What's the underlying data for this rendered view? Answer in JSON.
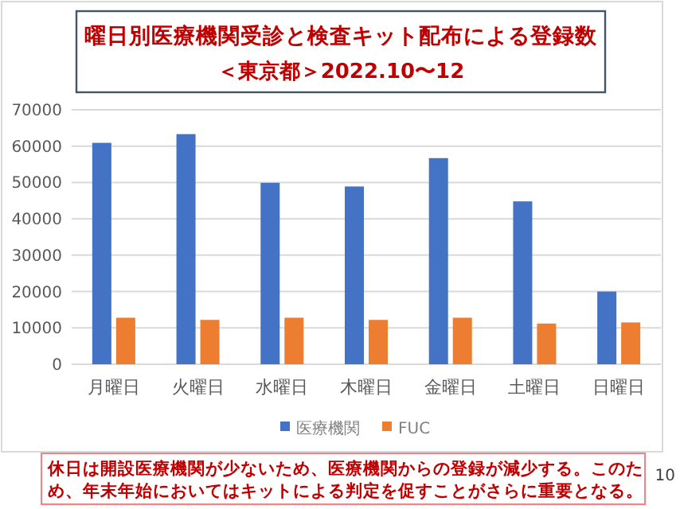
{
  "chart_data": {
    "type": "bar",
    "title": "曜日別医療機関受診と検査キット配布による登録数",
    "subtitle": "＜東京都＞2022.10〜12",
    "categories": [
      "月曜日",
      "火曜日",
      "水曜日",
      "木曜日",
      "金曜日",
      "土曜日",
      "日曜日"
    ],
    "series": [
      {
        "name": "医療機関",
        "color": "#4472c4",
        "values": [
          60900,
          63300,
          49900,
          48900,
          56700,
          44800,
          20000
        ]
      },
      {
        "name": "FUC",
        "color": "#ed7d31",
        "values": [
          12800,
          12200,
          12800,
          12200,
          12800,
          11200,
          11500
        ]
      }
    ],
    "ylim": [
      0,
      70000
    ],
    "yticks": [
      0,
      10000,
      20000,
      30000,
      40000,
      50000,
      60000,
      70000
    ],
    "grid": "y",
    "legend": "bottom",
    "annotations": [
      "休日は開設医療機関が少ないため、医療機関からの登録が減少する。このため、年末年始においてはキットによる判定を促すことがさらに重要となる。",
      "10"
    ]
  }
}
